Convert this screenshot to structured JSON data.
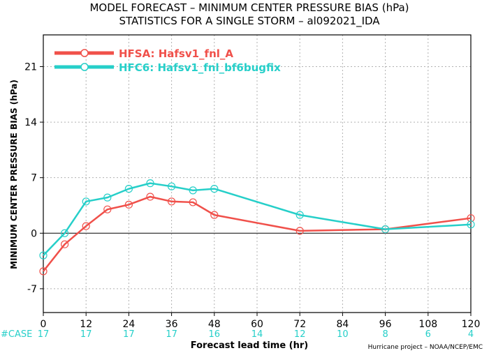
{
  "chart_data": {
    "type": "line",
    "title": "MODEL FORECAST – MINIMUM CENTER PRESSURE BIAS (hPa)",
    "subtitle": "STATISTICS FOR A SINGLE STORM – al092021_IDA",
    "xlabel": "Forecast lead time (hr)",
    "ylabel": "MINIMUM CENTER PRESSURE BIAS (hPa)",
    "xlim": [
      0,
      120
    ],
    "ylim": [
      -10,
      25
    ],
    "x_ticks": [
      0,
      12,
      24,
      36,
      48,
      60,
      72,
      84,
      96,
      108,
      120
    ],
    "y_ticks": [
      -7,
      0,
      7,
      14,
      21
    ],
    "grid": true,
    "legend_position": "top-left",
    "case_label": "#CASE",
    "case_counts": [
      "17",
      "17",
      "17",
      "17",
      "16",
      "14",
      "12",
      "10",
      "8",
      "6",
      "4"
    ],
    "credit": "Hurricane project – NOAA/NCEP/EMC",
    "series": [
      {
        "name": "HFSA: Hafsv1_fnl_A",
        "color": "#f0504a",
        "x": [
          0,
          6,
          12,
          18,
          24,
          30,
          36,
          42,
          48,
          72,
          96,
          120
        ],
        "y": [
          -4.8,
          -1.4,
          0.9,
          3.0,
          3.6,
          4.6,
          4.0,
          3.9,
          2.3,
          0.3,
          0.5,
          1.9
        ]
      },
      {
        "name": "HFC6: Hafsv1_fnl_bf6bugfix",
        "color": "#26cfc9",
        "x": [
          0,
          6,
          12,
          18,
          24,
          30,
          36,
          42,
          48,
          72,
          96,
          120
        ],
        "y": [
          -2.8,
          0.0,
          4.0,
          4.5,
          5.6,
          6.3,
          5.9,
          5.4,
          5.6,
          2.3,
          0.5,
          1.1
        ]
      }
    ]
  }
}
